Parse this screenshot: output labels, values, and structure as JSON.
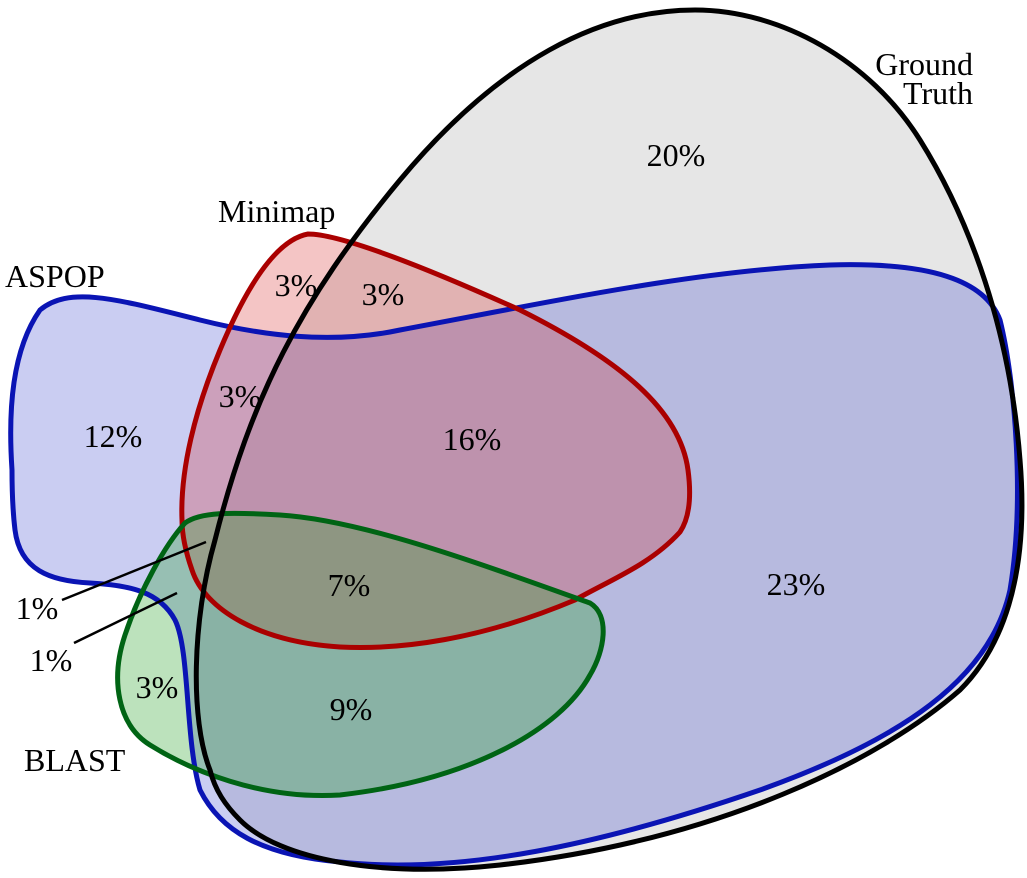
{
  "sets": {
    "ground_truth": {
      "label_line1": "Ground",
      "label_line2": "Truth",
      "color": "#000000",
      "fill": "#e6e6e6"
    },
    "minimap": {
      "label": "Minimap",
      "color": "#aa0000",
      "fill": "#f4c4c4"
    },
    "aspop": {
      "label": "ASPOP",
      "color": "#0a14b4",
      "fill": "#cdcff4"
    },
    "blast": {
      "label": "BLAST",
      "color": "#006414",
      "fill": "#b3e2b3"
    }
  },
  "regions": {
    "ground_truth_only": "20%",
    "minimap_only": "3%",
    "minimap_ground_truth": "3%",
    "aspop_minimap": "3%",
    "aspop_only": "12%",
    "aspop_minimap_ground_truth": "16%",
    "aspop_minimap_blast_ground_truth": "7%",
    "aspop_ground_truth": "23%",
    "aspop_blast_minimap": "1%",
    "aspop_blast": "1%",
    "blast_only": "3%",
    "aspop_blast_ground_truth": "9%"
  }
}
